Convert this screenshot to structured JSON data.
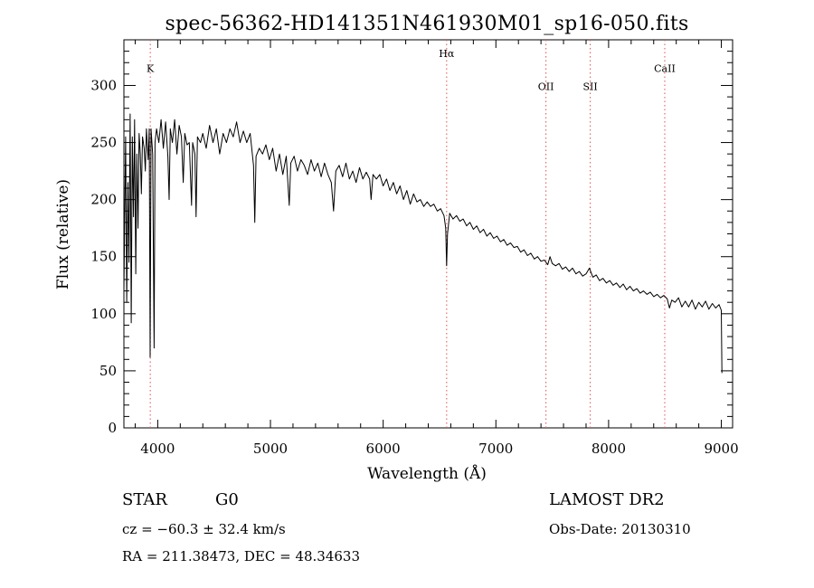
{
  "chart_data": {
    "type": "line",
    "title": "spec-56362-HD141351N461930M01_sp16-050.fits",
    "xlabel": "Wavelength (Å)",
    "ylabel": "Flux (relative)",
    "xlim": [
      3700,
      9100
    ],
    "ylim": [
      0,
      340
    ],
    "xticks": [
      4000,
      5000,
      6000,
      7000,
      8000,
      9000
    ],
    "yticks": [
      0,
      50,
      100,
      150,
      200,
      250,
      300
    ],
    "grid": false,
    "series": [
      {
        "values": [
          [
            3700,
            120
          ],
          [
            3715,
            255
          ],
          [
            3725,
            110
          ],
          [
            3735,
            215
          ],
          [
            3745,
            145
          ],
          [
            3755,
            275
          ],
          [
            3765,
            92
          ],
          [
            3775,
            255
          ],
          [
            3785,
            185
          ],
          [
            3795,
            270
          ],
          [
            3805,
            135
          ],
          [
            3815,
            240
          ],
          [
            3825,
            175
          ],
          [
            3835,
            258
          ],
          [
            3845,
            240
          ],
          [
            3855,
            205
          ],
          [
            3865,
            255
          ],
          [
            3880,
            245
          ],
          [
            3890,
            225
          ],
          [
            3900,
            262
          ],
          [
            3915,
            235
          ],
          [
            3925,
            262
          ],
          [
            3933,
            62
          ],
          [
            3941,
            262
          ],
          [
            3955,
            240
          ],
          [
            3968,
            70
          ],
          [
            3976,
            250
          ],
          [
            3990,
            262
          ],
          [
            4010,
            250
          ],
          [
            4030,
            270
          ],
          [
            4050,
            245
          ],
          [
            4070,
            268
          ],
          [
            4090,
            238
          ],
          [
            4101,
            200
          ],
          [
            4112,
            262
          ],
          [
            4130,
            250
          ],
          [
            4150,
            270
          ],
          [
            4170,
            240
          ],
          [
            4190,
            265
          ],
          [
            4210,
            255
          ],
          [
            4226,
            215
          ],
          [
            4240,
            258
          ],
          [
            4260,
            248
          ],
          [
            4280,
            250
          ],
          [
            4300,
            195
          ],
          [
            4310,
            250
          ],
          [
            4330,
            240
          ],
          [
            4340,
            185
          ],
          [
            4352,
            255
          ],
          [
            4380,
            250
          ],
          [
            4400,
            258
          ],
          [
            4430,
            245
          ],
          [
            4460,
            265
          ],
          [
            4490,
            250
          ],
          [
            4520,
            262
          ],
          [
            4550,
            240
          ],
          [
            4580,
            258
          ],
          [
            4610,
            250
          ],
          [
            4640,
            262
          ],
          [
            4670,
            255
          ],
          [
            4700,
            268
          ],
          [
            4730,
            250
          ],
          [
            4760,
            260
          ],
          [
            4790,
            250
          ],
          [
            4820,
            258
          ],
          [
            4850,
            230
          ],
          [
            4861,
            180
          ],
          [
            4872,
            238
          ],
          [
            4900,
            245
          ],
          [
            4930,
            240
          ],
          [
            4960,
            248
          ],
          [
            4990,
            235
          ],
          [
            5020,
            245
          ],
          [
            5050,
            225
          ],
          [
            5080,
            240
          ],
          [
            5110,
            222
          ],
          [
            5140,
            238
          ],
          [
            5167,
            195
          ],
          [
            5180,
            232
          ],
          [
            5210,
            238
          ],
          [
            5240,
            225
          ],
          [
            5270,
            235
          ],
          [
            5300,
            230
          ],
          [
            5330,
            222
          ],
          [
            5360,
            235
          ],
          [
            5390,
            225
          ],
          [
            5420,
            232
          ],
          [
            5450,
            220
          ],
          [
            5480,
            232
          ],
          [
            5510,
            222
          ],
          [
            5540,
            215
          ],
          [
            5560,
            190
          ],
          [
            5580,
            225
          ],
          [
            5610,
            230
          ],
          [
            5640,
            220
          ],
          [
            5670,
            232
          ],
          [
            5700,
            218
          ],
          [
            5730,
            225
          ],
          [
            5760,
            215
          ],
          [
            5790,
            228
          ],
          [
            5820,
            218
          ],
          [
            5850,
            224
          ],
          [
            5880,
            218
          ],
          [
            5893,
            200
          ],
          [
            5910,
            222
          ],
          [
            5940,
            218
          ],
          [
            5970,
            222
          ],
          [
            6000,
            212
          ],
          [
            6030,
            218
          ],
          [
            6060,
            208
          ],
          [
            6090,
            215
          ],
          [
            6120,
            205
          ],
          [
            6150,
            212
          ],
          [
            6180,
            200
          ],
          [
            6210,
            208
          ],
          [
            6240,
            196
          ],
          [
            6270,
            205
          ],
          [
            6300,
            198
          ],
          [
            6330,
            200
          ],
          [
            6360,
            194
          ],
          [
            6390,
            198
          ],
          [
            6420,
            194
          ],
          [
            6450,
            196
          ],
          [
            6480,
            190
          ],
          [
            6510,
            192
          ],
          [
            6540,
            186
          ],
          [
            6555,
            175
          ],
          [
            6563,
            142
          ],
          [
            6571,
            170
          ],
          [
            6590,
            188
          ],
          [
            6620,
            183
          ],
          [
            6650,
            186
          ],
          [
            6680,
            181
          ],
          [
            6710,
            183
          ],
          [
            6740,
            177
          ],
          [
            6770,
            180
          ],
          [
            6800,
            174
          ],
          [
            6830,
            177
          ],
          [
            6860,
            171
          ],
          [
            6890,
            174
          ],
          [
            6920,
            168
          ],
          [
            6950,
            171
          ],
          [
            6980,
            166
          ],
          [
            7010,
            168
          ],
          [
            7040,
            163
          ],
          [
            7070,
            165
          ],
          [
            7100,
            160
          ],
          [
            7130,
            162
          ],
          [
            7160,
            158
          ],
          [
            7190,
            159
          ],
          [
            7220,
            154
          ],
          [
            7250,
            156
          ],
          [
            7280,
            151
          ],
          [
            7310,
            153
          ],
          [
            7340,
            148
          ],
          [
            7370,
            150
          ],
          [
            7400,
            146
          ],
          [
            7430,
            147
          ],
          [
            7460,
            143
          ],
          [
            7480,
            150
          ],
          [
            7500,
            144
          ],
          [
            7530,
            142
          ],
          [
            7560,
            144
          ],
          [
            7590,
            139
          ],
          [
            7620,
            141
          ],
          [
            7650,
            137
          ],
          [
            7680,
            140
          ],
          [
            7710,
            135
          ],
          [
            7740,
            137
          ],
          [
            7770,
            133
          ],
          [
            7800,
            135
          ],
          [
            7830,
            140
          ],
          [
            7860,
            132
          ],
          [
            7890,
            134
          ],
          [
            7920,
            129
          ],
          [
            7950,
            131
          ],
          [
            7980,
            127
          ],
          [
            8010,
            129
          ],
          [
            8040,
            125
          ],
          [
            8070,
            127
          ],
          [
            8100,
            123
          ],
          [
            8130,
            126
          ],
          [
            8160,
            121
          ],
          [
            8190,
            124
          ],
          [
            8220,
            120
          ],
          [
            8250,
            122
          ],
          [
            8280,
            118
          ],
          [
            8310,
            120
          ],
          [
            8340,
            117
          ],
          [
            8370,
            119
          ],
          [
            8400,
            115
          ],
          [
            8430,
            117
          ],
          [
            8460,
            114
          ],
          [
            8490,
            116
          ],
          [
            8520,
            113
          ],
          [
            8540,
            105
          ],
          [
            8560,
            112
          ],
          [
            8590,
            110
          ],
          [
            8620,
            114
          ],
          [
            8650,
            106
          ],
          [
            8680,
            111
          ],
          [
            8710,
            106
          ],
          [
            8740,
            112
          ],
          [
            8770,
            104
          ],
          [
            8800,
            110
          ],
          [
            8830,
            106
          ],
          [
            8860,
            111
          ],
          [
            8890,
            104
          ],
          [
            8920,
            109
          ],
          [
            8950,
            105
          ],
          [
            8980,
            108
          ],
          [
            9000,
            103
          ],
          [
            9005,
            48
          ]
        ]
      }
    ],
    "line_markers": [
      {
        "label": "K",
        "x": 3934,
        "label_y": 312
      },
      {
        "label": "Hα",
        "x": 6563,
        "label_y": 325
      },
      {
        "label": "OII",
        "x": 7444,
        "label_y": 296
      },
      {
        "label": "SII",
        "x": 7837,
        "label_y": 296
      },
      {
        "label": "CaII",
        "x": 8498,
        "label_y": 312
      }
    ],
    "marker_color": "#e06060",
    "line_color": "#000000"
  },
  "footer": {
    "class_label": "STAR",
    "subclass": "G0",
    "survey": "LAMOST DR2",
    "cz": "cz = −60.3 ± 32.4 km/s",
    "obs_date": "Obs-Date: 20130310",
    "coords": "RA = 211.38473, DEC =  48.34633"
  }
}
